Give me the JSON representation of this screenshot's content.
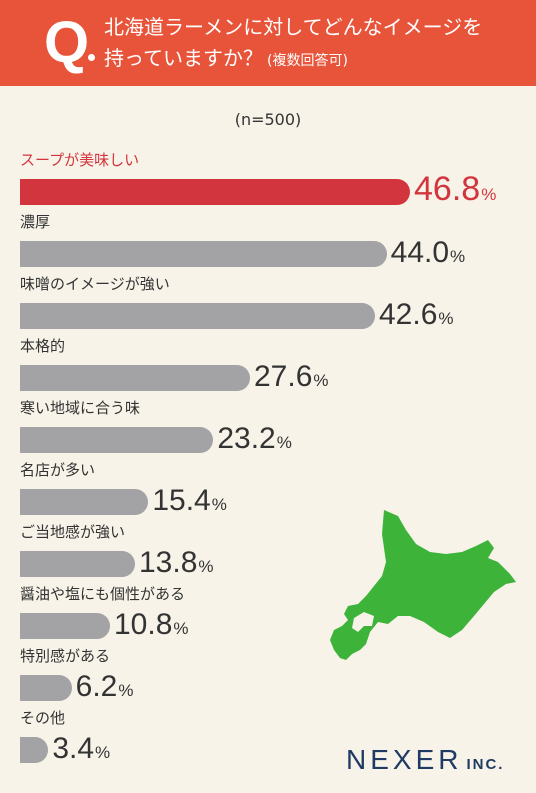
{
  "header": {
    "q": "Q",
    "line1": "北海道ラーメンに対してどんなイメージを",
    "line2": "持っていますか？",
    "sub": "(複数回答可)"
  },
  "note": "(n=500)",
  "colors": {
    "highlight": "#d2353d",
    "bar": "#a3a3a5",
    "header": "#e8543a",
    "map": "#3db33a"
  },
  "chart_data": {
    "type": "bar",
    "orientation": "horizontal",
    "categories": [
      "スープが美味しい",
      "濃厚",
      "味噌のイメージが強い",
      "本格的",
      "寒い地域に合う味",
      "名店が多い",
      "ご当地感が強い",
      "醤油や塩にも個性がある",
      "特別感がある",
      "その他"
    ],
    "values": [
      46.8,
      44.0,
      42.6,
      27.6,
      23.2,
      15.4,
      13.8,
      10.8,
      6.2,
      3.4
    ],
    "value_labels": [
      "46.8",
      "44.0",
      "42.6",
      "27.6",
      "23.2",
      "15.4",
      "13.8",
      "10.8",
      "6.2",
      "3.4"
    ],
    "unit": "%",
    "highlight_index": 0,
    "xlim": [
      0,
      46.8
    ]
  },
  "logo": {
    "main": "NEXER",
    "sub": "INC."
  }
}
